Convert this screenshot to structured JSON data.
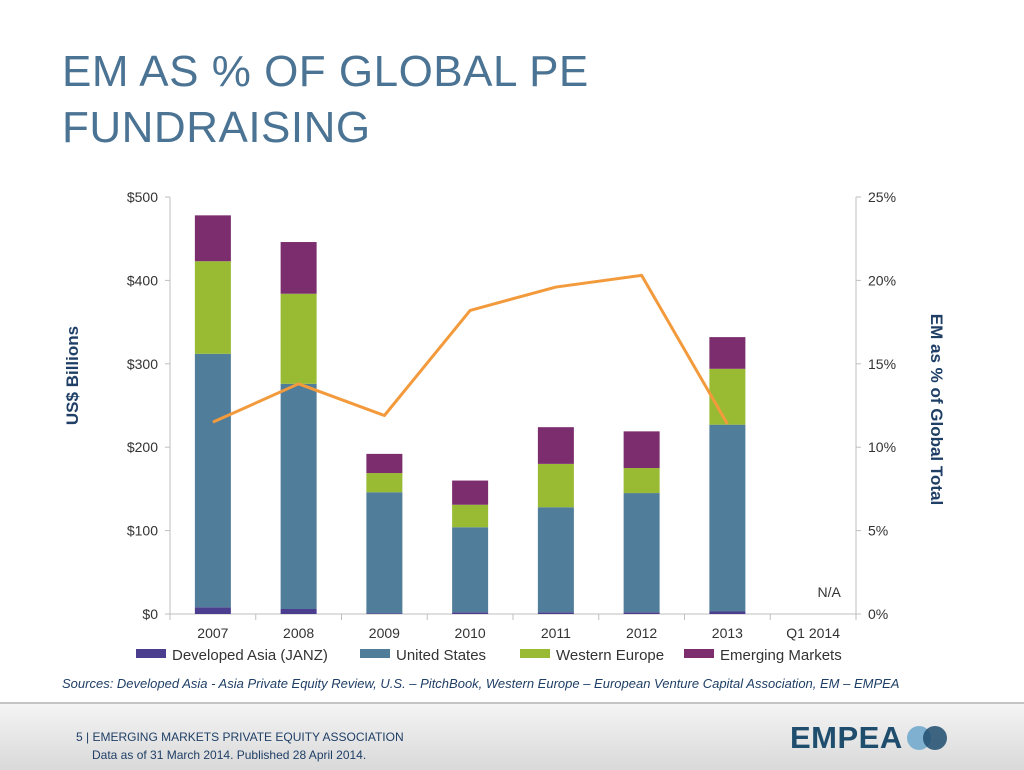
{
  "title": "EM AS % OF GLOBAL PE FUNDRAISING",
  "chart_data": {
    "type": "bar",
    "stacked": true,
    "categories": [
      "2007",
      "2008",
      "2009",
      "2010",
      "2011",
      "2012",
      "2013",
      "Q1 2014"
    ],
    "series": [
      {
        "name": "Developed Asia (JANZ)",
        "color": "#4b3e8f",
        "values": [
          8,
          6,
          1,
          2,
          2,
          2,
          3,
          null
        ]
      },
      {
        "name": "United States",
        "color": "#507d9a",
        "values": [
          304,
          270,
          145,
          102,
          126,
          143,
          224,
          null
        ]
      },
      {
        "name": "Western Europe",
        "color": "#98bb33",
        "values": [
          111,
          108,
          23,
          27,
          52,
          30,
          67,
          null
        ]
      },
      {
        "name": "Emerging Markets",
        "color": "#7b2d6e",
        "values": [
          55,
          62,
          23,
          29,
          44,
          44,
          38,
          null
        ]
      }
    ],
    "line": {
      "name": "EM as % of Global Total",
      "color": "#f29a3c",
      "values": [
        11.5,
        13.8,
        11.9,
        18.2,
        19.6,
        20.3,
        11.4,
        null
      ]
    },
    "ylabel": "US$ Billions",
    "y2label": "EM as % of Global Total",
    "ylim": [
      0,
      500
    ],
    "y2lim": [
      0,
      25
    ],
    "yticks": [
      "$0",
      "$100",
      "$200",
      "$300",
      "$400",
      "$500"
    ],
    "y2ticks": [
      "0%",
      "5%",
      "10%",
      "15%",
      "20%",
      "25%"
    ],
    "na_label": "N/A",
    "legend_position": "bottom"
  },
  "sources": "Sources: Developed Asia - Asia Private Equity Review, U.S. – PitchBook, Western Europe – European Venture Capital Association, EM – EMPEA",
  "footer": {
    "page_line": "5 | EMERGING MARKETS PRIVATE EQUITY ASSOCIATION",
    "date_line": "Data as of 31 March 2014. Published 28 April 2014.",
    "logo_text": "EMPEA"
  }
}
